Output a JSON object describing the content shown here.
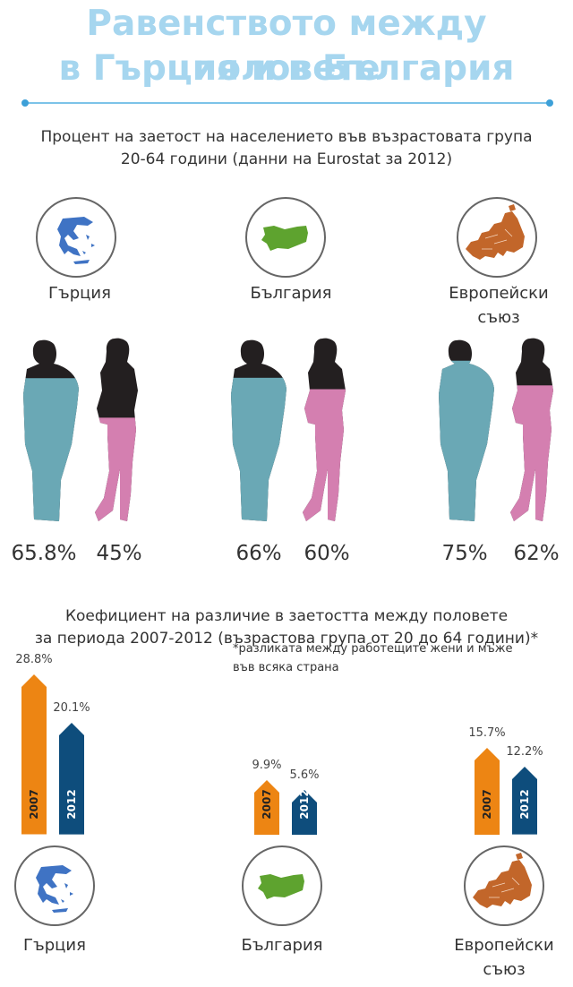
{
  "title": {
    "line1": "Равенството между половете",
    "line2": "в Гърция и в България"
  },
  "section1": {
    "subtitle_line1": "Процент на заетост на населението във възрастовата група",
    "subtitle_line2": "20-64 години (данни на Eurostat за 2012)"
  },
  "regions": [
    {
      "name_line1": "Гърция",
      "name_line2": "",
      "map_icon": "greece-map-icon",
      "map_color": "#3f73c4",
      "employment_men": "65.8%",
      "employment_women": "45%",
      "men_level": 0.658,
      "women_level": 0.45,
      "gap_2007": "28.8%",
      "gap_2012": "20.1%",
      "gap_2007_value": 28.8,
      "gap_2012_value": 20.1
    },
    {
      "name_line1": "България",
      "name_line2": "",
      "map_icon": "bulgaria-map-icon",
      "map_color": "#5ea32f",
      "employment_men": "66%",
      "employment_women": "60%",
      "men_level": 0.66,
      "women_level": 0.6,
      "gap_2007": "9.9%",
      "gap_2012": "5.6%",
      "gap_2007_value": 9.9,
      "gap_2012_value": 5.6
    },
    {
      "name_line1": "Европейски",
      "name_line2": "съюз",
      "map_icon": "europe-map-icon",
      "map_color": "#c2662a",
      "employment_men": "75%",
      "employment_women": "62%",
      "men_level": 0.75,
      "women_level": 0.62,
      "gap_2007": "15.7%",
      "gap_2012": "12.2%",
      "gap_2007_value": 15.7,
      "gap_2012_value": 12.2
    }
  ],
  "section2": {
    "subtitle_line1": "Коефициент на различие в заетостта между половете",
    "subtitle_line2": "за периода  2007-2012 (възрастова група от 20 до 64 години)*",
    "footnote_line1": "*разликата между работещите жени и мъже",
    "footnote_line2": "във всяка страна",
    "year_2007": "2007",
    "year_2012": "2012"
  },
  "colors": {
    "title": "#a6d6ef",
    "rule": "#7cc3e8",
    "men": "#6aa8b5",
    "women": "#d47fb0",
    "silhouette_dark": "#231f20",
    "bar_2007": "#ed8513",
    "bar_2012": "#0e4d7c"
  }
}
